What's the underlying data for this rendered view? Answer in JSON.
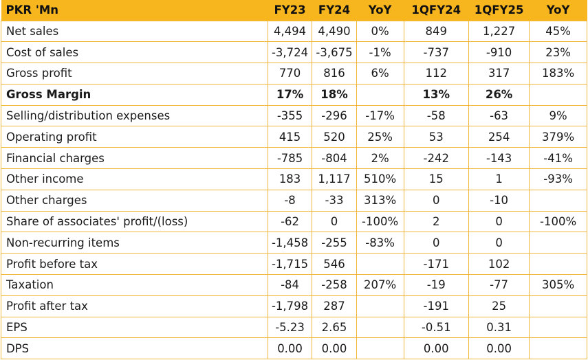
{
  "table": {
    "headers": [
      "PKR 'Mn",
      "FY23",
      "FY24",
      "YoY",
      "1QFY24",
      "1QFY25",
      "YoY"
    ],
    "rows": [
      {
        "label": "Net sales",
        "cells": [
          "4,494",
          "4,490",
          "0%",
          "849",
          "1,227",
          "45%"
        ],
        "bold": false
      },
      {
        "label": "Cost of sales",
        "cells": [
          "-3,724",
          "-3,675",
          "-1%",
          "-737",
          "-910",
          "23%"
        ],
        "bold": false
      },
      {
        "label": "Gross profit",
        "cells": [
          "770",
          "816",
          "6%",
          "112",
          "317",
          "183%"
        ],
        "bold": false
      },
      {
        "label": "Gross Margin",
        "cells": [
          "17%",
          "18%",
          "",
          "13%",
          "26%",
          ""
        ],
        "bold": true
      },
      {
        "label": "Selling/distribution expenses",
        "cells": [
          "-355",
          "-296",
          "-17%",
          "-58",
          "-63",
          "9%"
        ],
        "bold": false
      },
      {
        "label": "Operating profit",
        "cells": [
          "415",
          "520",
          "25%",
          "53",
          "254",
          "379%"
        ],
        "bold": false
      },
      {
        "label": "Financial charges",
        "cells": [
          "-785",
          "-804",
          "2%",
          "-242",
          "-143",
          "-41%"
        ],
        "bold": false
      },
      {
        "label": "Other income",
        "cells": [
          "183",
          "1,117",
          "510%",
          "15",
          "1",
          "-93%"
        ],
        "bold": false
      },
      {
        "label": "Other charges",
        "cells": [
          "-8",
          "-33",
          "313%",
          "0",
          "-10",
          ""
        ],
        "bold": false
      },
      {
        "label": "Share of associates' profit/(loss)",
        "cells": [
          "-62",
          "0",
          "-100%",
          "2",
          "0",
          "-100%"
        ],
        "bold": false
      },
      {
        "label": "Non-recurring items",
        "cells": [
          "-1,458",
          "-255",
          "-83%",
          "0",
          "0",
          ""
        ],
        "bold": false
      },
      {
        "label": "Profit before tax",
        "cells": [
          "-1,715",
          "546",
          "",
          "-171",
          "102",
          ""
        ],
        "bold": false
      },
      {
        "label": "Taxation",
        "cells": [
          "-84",
          "-258",
          "207%",
          "-19",
          "-77",
          "305%"
        ],
        "bold": false
      },
      {
        "label": "Profit after tax",
        "cells": [
          "-1,798",
          "287",
          "",
          "-191",
          "25",
          ""
        ],
        "bold": false
      },
      {
        "label": "EPS",
        "cells": [
          "-5.23",
          "2.65",
          "",
          "-0.51",
          "0.31",
          ""
        ],
        "bold": false
      },
      {
        "label": "DPS",
        "cells": [
          "0.00",
          "0.00",
          "",
          "0.00",
          "0.00",
          ""
        ],
        "bold": false
      }
    ]
  },
  "colors": {
    "header_bg": "#f7b51e",
    "border": "#f2b73a"
  }
}
